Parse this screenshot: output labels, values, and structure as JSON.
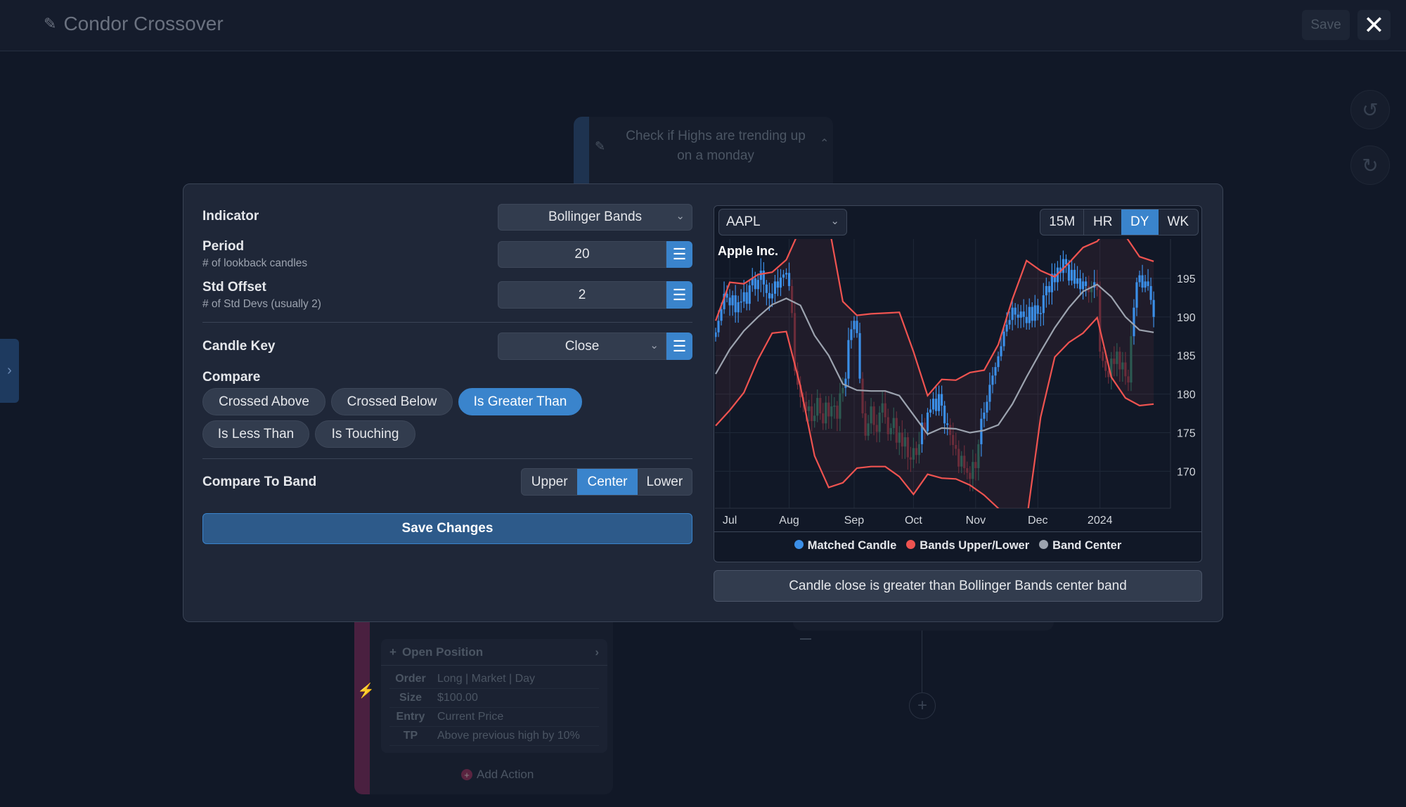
{
  "header": {
    "title": "Condor Crossover",
    "save_label": "Save",
    "close_icon": "✕"
  },
  "background": {
    "node_title": "Check if Highs are trending up on a monday",
    "action_card": {
      "title": "Open Position",
      "rows": [
        {
          "key": "Order",
          "value": "Long | Market | Day"
        },
        {
          "key": "Size",
          "value": "$100.00"
        },
        {
          "key": "Entry",
          "value": "Current Price"
        },
        {
          "key": "TP",
          "value": "Above previous high by 10%"
        }
      ]
    },
    "add_action_label": "Add Action"
  },
  "form": {
    "indicator": {
      "label": "Indicator",
      "value": "Bollinger Bands"
    },
    "period": {
      "label": "Period",
      "hint": "# of lookback candles",
      "value": "20"
    },
    "std_offset": {
      "label": "Std Offset",
      "hint": "# of Std Devs (usually 2)",
      "value": "2"
    },
    "candle_key": {
      "label": "Candle Key",
      "value": "Close"
    },
    "compare": {
      "label": "Compare",
      "options": [
        "Crossed Above",
        "Crossed Below",
        "Is Greater Than",
        "Is Less Than",
        "Is Touching"
      ],
      "selected": "Is Greater Than"
    },
    "compare_to_band": {
      "label": "Compare To Band",
      "options": [
        "Upper",
        "Center",
        "Lower"
      ],
      "selected": "Center"
    },
    "save_label": "Save Changes"
  },
  "chart": {
    "symbol": "AAPL",
    "timeframes": [
      "15M",
      "HR",
      "DY",
      "WK"
    ],
    "selected_timeframe": "DY",
    "summary": "Candle close is greater than Bollinger Bands center band"
  },
  "chart_data": {
    "type": "candlestick",
    "title": "Apple Inc.",
    "ylim": [
      165.2,
      200.1
    ],
    "y_ticks": [
      170,
      175,
      180,
      185,
      190,
      195
    ],
    "x_ticks": [
      {
        "label": "Jul",
        "date": "2023-07-03"
      },
      {
        "label": "Aug",
        "date": "2023-08-01"
      },
      {
        "label": "Sep",
        "date": "2023-09-01"
      },
      {
        "label": "Oct",
        "date": "2023-10-02"
      },
      {
        "label": "Nov",
        "date": "2023-11-01"
      },
      {
        "label": "Dec",
        "date": "2023-12-01"
      },
      {
        "label": "2024",
        "date": "2024-01-02"
      }
    ],
    "grid": true,
    "legend": {
      "position": "bottom",
      "items": [
        {
          "name": "Matched Candle",
          "color": "#3b8fe8"
        },
        {
          "name": "Bands Upper/Lower",
          "color": "#ef5350"
        },
        {
          "name": "Band Center",
          "color": "#9ca3af"
        }
      ]
    },
    "weeks": [
      {
        "date": "2023-06-26",
        "closes": [
          188,
          189.5,
          191,
          193,
          192.5
        ],
        "upper": 189.5,
        "center": 182.6,
        "lower": 175.9
      },
      {
        "date": "2023-07-03",
        "closes": [
          191.5,
          192.8,
          190.6,
          191.9,
          192
        ],
        "upper": 194.5,
        "center": 185.8,
        "lower": 177.9
      },
      {
        "date": "2023-07-10",
        "closes": [
          193.2,
          191.7,
          194.1,
          195,
          193.6
        ],
        "upper": 194.3,
        "center": 188.2,
        "lower": 180.2
      },
      {
        "date": "2023-07-17",
        "closes": [
          194.8,
          196,
          194.2,
          193.1,
          192.4
        ],
        "upper": 195.5,
        "center": 190,
        "lower": 184.5
      },
      {
        "date": "2023-07-24",
        "closes": [
          193,
          194.6,
          193.8,
          195.1,
          195.5
        ],
        "upper": 195.8,
        "center": 191.6,
        "lower": 187.9
      },
      {
        "date": "2023-07-31",
        "closes": [
          195.7,
          194,
          190.5,
          183,
          181.2
        ],
        "upper": 197.4,
        "center": 192.4,
        "lower": 188.1
      },
      {
        "date": "2023-08-07",
        "closes": [
          179.6,
          179,
          177.8,
          178.4,
          176.5
        ],
        "upper": 201.5,
        "center": 191.5,
        "lower": 181
      },
      {
        "date": "2023-08-14",
        "closes": [
          177.2,
          179.5,
          177.5,
          176.2,
          178.9
        ],
        "upper": 203,
        "center": 187.6,
        "lower": 172
      },
      {
        "date": "2023-08-21",
        "closes": [
          177.1,
          178.4,
          178.5,
          176.8,
          180.1
        ],
        "upper": 202,
        "center": 185,
        "lower": 167.9
      },
      {
        "date": "2023-08-28",
        "closes": [
          180.8,
          182,
          187,
          188.4,
          189.5
        ],
        "upper": 192,
        "center": 181.3,
        "lower": 168.5
      },
      {
        "date": "2023-09-04",
        "closes": [
          187.9,
          182,
          177.5,
          174.6,
          176.2
        ],
        "upper": 190.2,
        "center": 180.5,
        "lower": 170.4
      },
      {
        "date": "2023-09-11",
        "closes": [
          178.4,
          176,
          175.1,
          177.6,
          178.8
        ],
        "upper": 190.4,
        "center": 180.4,
        "lower": 170.6
      },
      {
        "date": "2023-09-18",
        "closes": [
          177,
          174.8,
          175.6,
          176.9,
          173.7
        ],
        "upper": 190.5,
        "center": 180.4,
        "lower": 170.6
      },
      {
        "date": "2023-09-25",
        "closes": [
          175,
          173.2,
          174.4,
          171.8,
          171.5
        ],
        "upper": 190.6,
        "center": 179.8,
        "lower": 169.3
      },
      {
        "date": "2023-10-02",
        "closes": [
          173,
          172.1,
          173.5,
          176.3,
          175.2
        ],
        "upper": 185.5,
        "center": 177.3,
        "lower": 167
      },
      {
        "date": "2023-10-09",
        "closes": [
          177.6,
          178,
          179.4,
          177.8,
          180
        ],
        "upper": 179.8,
        "center": 174.8,
        "lower": 169.6
      },
      {
        "date": "2023-10-16",
        "closes": [
          178.5,
          176.2,
          176,
          174.7,
          173.4
        ],
        "upper": 181.9,
        "center": 175.6,
        "lower": 169.1
      },
      {
        "date": "2023-10-23",
        "closes": [
          172.9,
          170.6,
          172,
          170.4,
          169.8
        ],
        "upper": 181.8,
        "center": 175.5,
        "lower": 169
      },
      {
        "date": "2023-10-30",
        "closes": [
          169,
          171.2,
          170.4,
          173.5,
          176.8
        ],
        "upper": 182.8,
        "center": 175,
        "lower": 168.2
      },
      {
        "date": "2023-11-06",
        "closes": [
          177.6,
          179,
          181.2,
          182.4,
          183.5
        ],
        "upper": 183.1,
        "center": 175.3,
        "lower": 166.9
      },
      {
        "date": "2023-11-13",
        "closes": [
          184.9,
          186.2,
          188.1,
          189,
          189.6
        ],
        "upper": 186.4,
        "center": 176,
        "lower": 165.2
      },
      {
        "date": "2023-11-20",
        "closes": [
          191.2,
          190.3,
          189.9,
          190.7,
          190
        ],
        "upper": 192.3,
        "center": 178.7,
        "lower": 163.5
      },
      {
        "date": "2023-11-27",
        "closes": [
          189.2,
          191.3,
          189.5,
          191.5,
          190.4
        ],
        "upper": 197.3,
        "center": 182.2,
        "lower": 163.5
      },
      {
        "date": "2023-12-04",
        "closes": [
          190.5,
          192.8,
          194,
          193.2,
          195.6
        ],
        "upper": 196,
        "center": 185.5,
        "lower": 177
      },
      {
        "date": "2023-12-11",
        "closes": [
          194.5,
          196.4,
          195.7,
          197.5,
          196.8
        ],
        "upper": 195.2,
        "center": 188.6,
        "lower": 184.8
      },
      {
        "date": "2023-12-18",
        "closes": [
          194.7,
          196.1,
          194.3,
          195,
          193.6
        ],
        "upper": 197,
        "center": 191.2,
        "lower": 186.7
      },
      {
        "date": "2023-12-25",
        "closes": [
          194.6,
          194,
          193.2,
          193.8,
          194.5
        ],
        "upper": 199,
        "center": 193.3,
        "lower": 187.9
      },
      {
        "date": "2024-01-01",
        "closes": [
          193.5,
          185.5,
          184.3,
          183,
          182.2
        ],
        "upper": 199.8,
        "center": 194.2,
        "lower": 189.9
      },
      {
        "date": "2024-01-08",
        "closes": [
          184.6,
          183.9,
          185.5,
          183.2,
          184.1
        ],
        "upper": 202,
        "center": 192.6,
        "lower": 182.2
      },
      {
        "date": "2024-01-15",
        "closes": [
          182.3,
          181.5,
          187.5,
          191.2,
          194.5
        ],
        "upper": 200.5,
        "center": 190,
        "lower": 179.5
      },
      {
        "date": "2024-01-22",
        "closes": [
          195.4,
          193.8,
          194.6,
          194,
          192.2
        ],
        "upper": 197.8,
        "center": 188.3,
        "lower": 178.5
      },
      {
        "date": "2024-01-29",
        "closes": [
          190
        ],
        "upper": 197.2,
        "center": 188,
        "lower": 178.7
      }
    ]
  }
}
